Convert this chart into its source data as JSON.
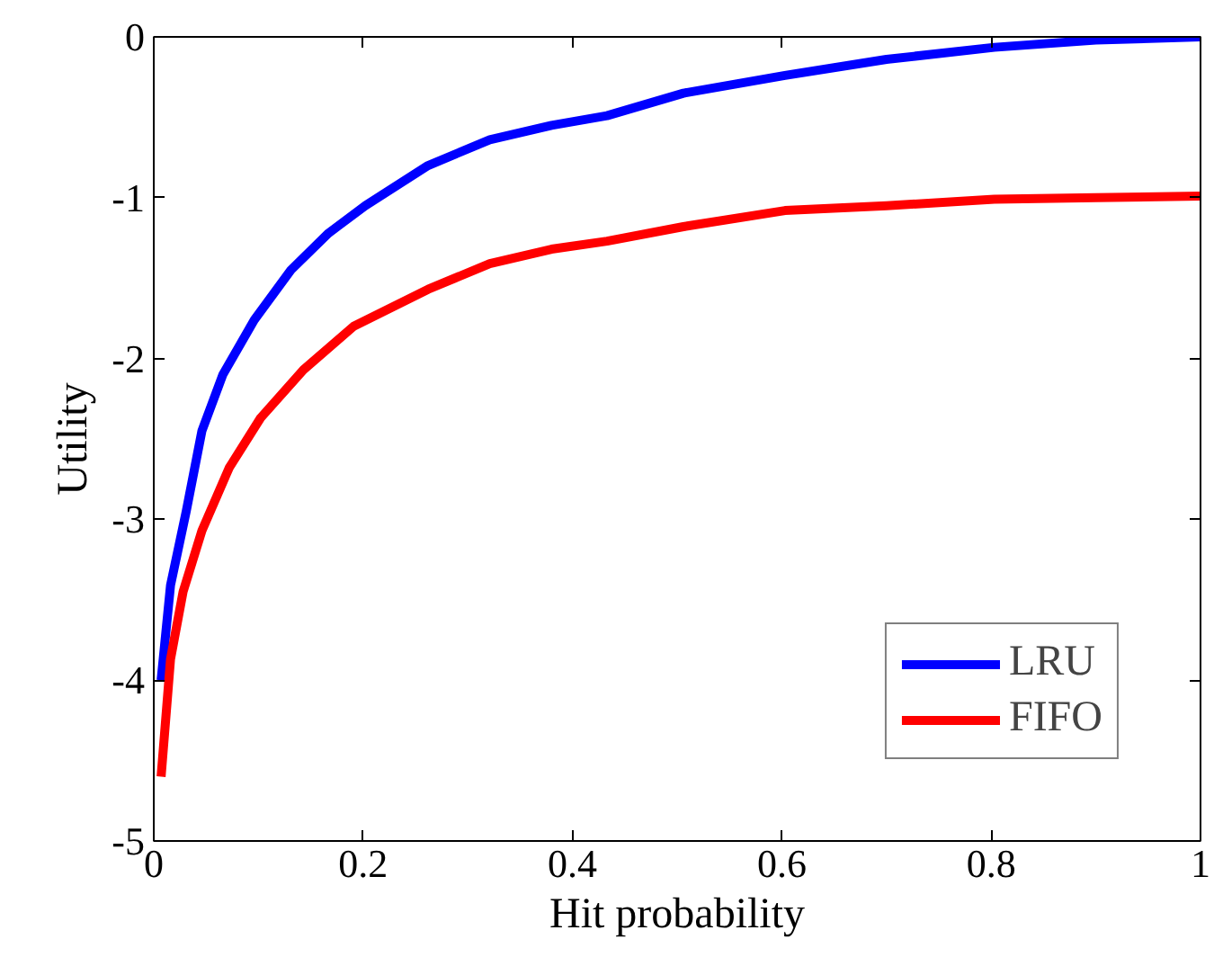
{
  "chart_data": {
    "type": "line",
    "xlabel": "Hit probability",
    "ylabel": "Utility",
    "xlim": [
      0,
      1
    ],
    "ylim": [
      -5,
      0
    ],
    "xticks": [
      0,
      0.2,
      0.4,
      0.6,
      0.8,
      1
    ],
    "yticks": [
      -5,
      -4,
      -3,
      -2,
      -1,
      0
    ],
    "grid": false,
    "legend": "bottom right",
    "line_style": "solid",
    "marker": "none",
    "series": [
      {
        "name": "LRU",
        "color": "#0000ff",
        "x": [
          0.007,
          0.016,
          0.031,
          0.046,
          0.066,
          0.096,
          0.131,
          0.167,
          0.202,
          0.262,
          0.321,
          0.38,
          0.433,
          0.506,
          0.603,
          0.7,
          0.803,
          0.9,
          1.0
        ],
        "values": [
          -4.0,
          -3.41,
          -2.95,
          -2.45,
          -2.1,
          -1.76,
          -1.45,
          -1.22,
          -1.05,
          -0.8,
          -0.64,
          -0.55,
          -0.49,
          -0.35,
          -0.24,
          -0.14,
          -0.065,
          -0.02,
          0
        ]
      },
      {
        "name": "FIFO",
        "color": "#ff0000",
        "x": [
          0.007,
          0.016,
          0.028,
          0.046,
          0.072,
          0.102,
          0.143,
          0.191,
          0.262,
          0.321,
          0.38,
          0.433,
          0.506,
          0.603,
          0.7,
          0.803,
          0.9,
          1.0
        ],
        "values": [
          -4.6,
          -3.87,
          -3.45,
          -3.07,
          -2.68,
          -2.37,
          -2.07,
          -1.8,
          -1.57,
          -1.41,
          -1.32,
          -1.27,
          -1.18,
          -1.08,
          -1.05,
          -1.01,
          -1.0,
          -0.99
        ]
      }
    ]
  }
}
